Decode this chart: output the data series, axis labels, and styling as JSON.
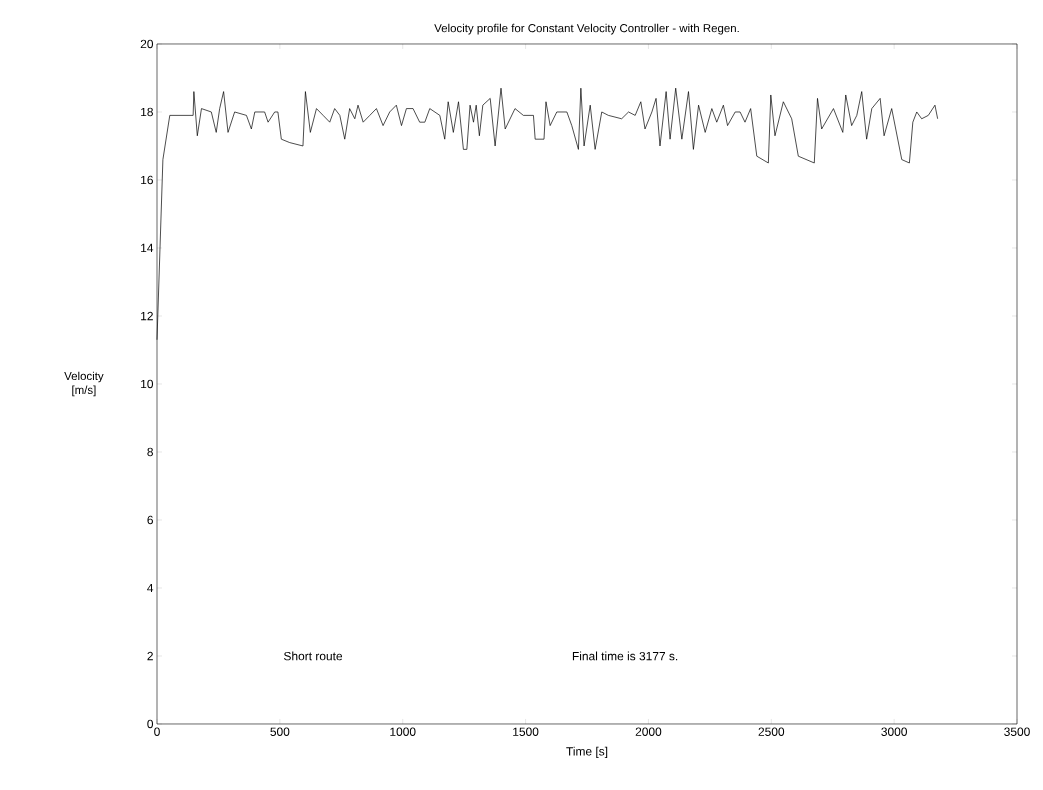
{
  "chart_data": {
    "type": "line",
    "title": "Velocity profile for Constant Velocity Controller - with Regen.",
    "xlabel": "Time [s]",
    "ylabel": "Velocity [m/s]",
    "annotations": [
      "Short route",
      "Final time is 3177 s."
    ],
    "xlim": [
      0,
      3500
    ],
    "ylim": [
      0,
      20
    ],
    "xticks": [
      0,
      500,
      1000,
      1500,
      2000,
      2500,
      3000,
      3500
    ],
    "yticks": [
      0,
      2,
      4,
      6,
      8,
      10,
      12,
      14,
      16,
      18,
      20
    ],
    "grid": false,
    "marker": "none",
    "line_style": "solid",
    "series": [
      {
        "color": "#000000",
        "x": [
          0,
          24,
          52,
          147,
          150,
          164,
          181,
          221,
          241,
          255,
          271,
          289,
          316,
          364,
          384,
          398,
          438,
          452,
          479,
          492,
          506,
          540,
          594,
          604,
          624,
          649,
          676,
          703,
          723,
          744,
          764,
          784,
          805,
          818,
          839,
          866,
          893,
          920,
          947,
          974,
          995,
          1015,
          1042,
          1069,
          1090,
          1110,
          1151,
          1171,
          1185,
          1206,
          1227,
          1247,
          1261,
          1274,
          1288,
          1299,
          1312,
          1326,
          1356,
          1376,
          1400,
          1417,
          1457,
          1491,
          1532,
          1539,
          1575,
          1583,
          1600,
          1627,
          1668,
          1688,
          1715,
          1725,
          1738,
          1763,
          1783,
          1810,
          1837,
          1891,
          1919,
          1946,
          1969,
          1986,
          2014,
          2031,
          2047,
          2072,
          2088,
          2111,
          2136,
          2163,
          2183,
          2204,
          2231,
          2258,
          2278,
          2305,
          2322,
          2353,
          2373,
          2393,
          2416,
          2441,
          2488,
          2498,
          2515,
          2549,
          2583,
          2610,
          2675,
          2688,
          2705,
          2753,
          2791,
          2803,
          2827,
          2848,
          2868,
          2888,
          2909,
          2943,
          2959,
          2990,
          3031,
          3062,
          3076,
          3092,
          3112,
          3139,
          3166,
          3177
        ],
        "values": [
          11.3,
          16.6,
          17.9,
          17.9,
          18.6,
          17.3,
          18.1,
          18.0,
          17.4,
          18.1,
          18.6,
          17.4,
          18.0,
          17.9,
          17.5,
          18.0,
          18.0,
          17.7,
          18.0,
          18.0,
          17.2,
          17.1,
          17.0,
          18.6,
          17.4,
          18.1,
          17.9,
          17.7,
          18.1,
          17.9,
          17.2,
          18.1,
          17.8,
          18.2,
          17.7,
          17.9,
          18.1,
          17.6,
          18.0,
          18.2,
          17.6,
          18.1,
          18.1,
          17.7,
          17.7,
          18.1,
          17.9,
          17.2,
          18.3,
          17.4,
          18.3,
          16.9,
          16.9,
          18.2,
          17.7,
          18.2,
          17.3,
          18.2,
          18.4,
          17.0,
          18.7,
          17.5,
          18.1,
          17.9,
          17.9,
          17.2,
          17.2,
          18.3,
          17.6,
          18.0,
          18.0,
          17.6,
          16.9,
          18.7,
          17.0,
          18.2,
          16.9,
          18.0,
          17.9,
          17.8,
          18.0,
          17.9,
          18.3,
          17.5,
          18.0,
          18.4,
          17.0,
          18.6,
          17.2,
          18.7,
          17.2,
          18.6,
          16.9,
          18.2,
          17.4,
          18.1,
          17.7,
          18.2,
          17.6,
          18.0,
          18.0,
          17.7,
          18.1,
          16.7,
          16.5,
          18.5,
          17.3,
          18.3,
          17.8,
          16.7,
          16.5,
          18.4,
          17.5,
          18.1,
          17.4,
          18.5,
          17.6,
          17.9,
          18.6,
          17.2,
          18.1,
          18.4,
          17.3,
          18.1,
          16.6,
          16.5,
          17.7,
          18.0,
          17.8,
          17.9,
          18.2,
          17.8
        ]
      }
    ]
  }
}
